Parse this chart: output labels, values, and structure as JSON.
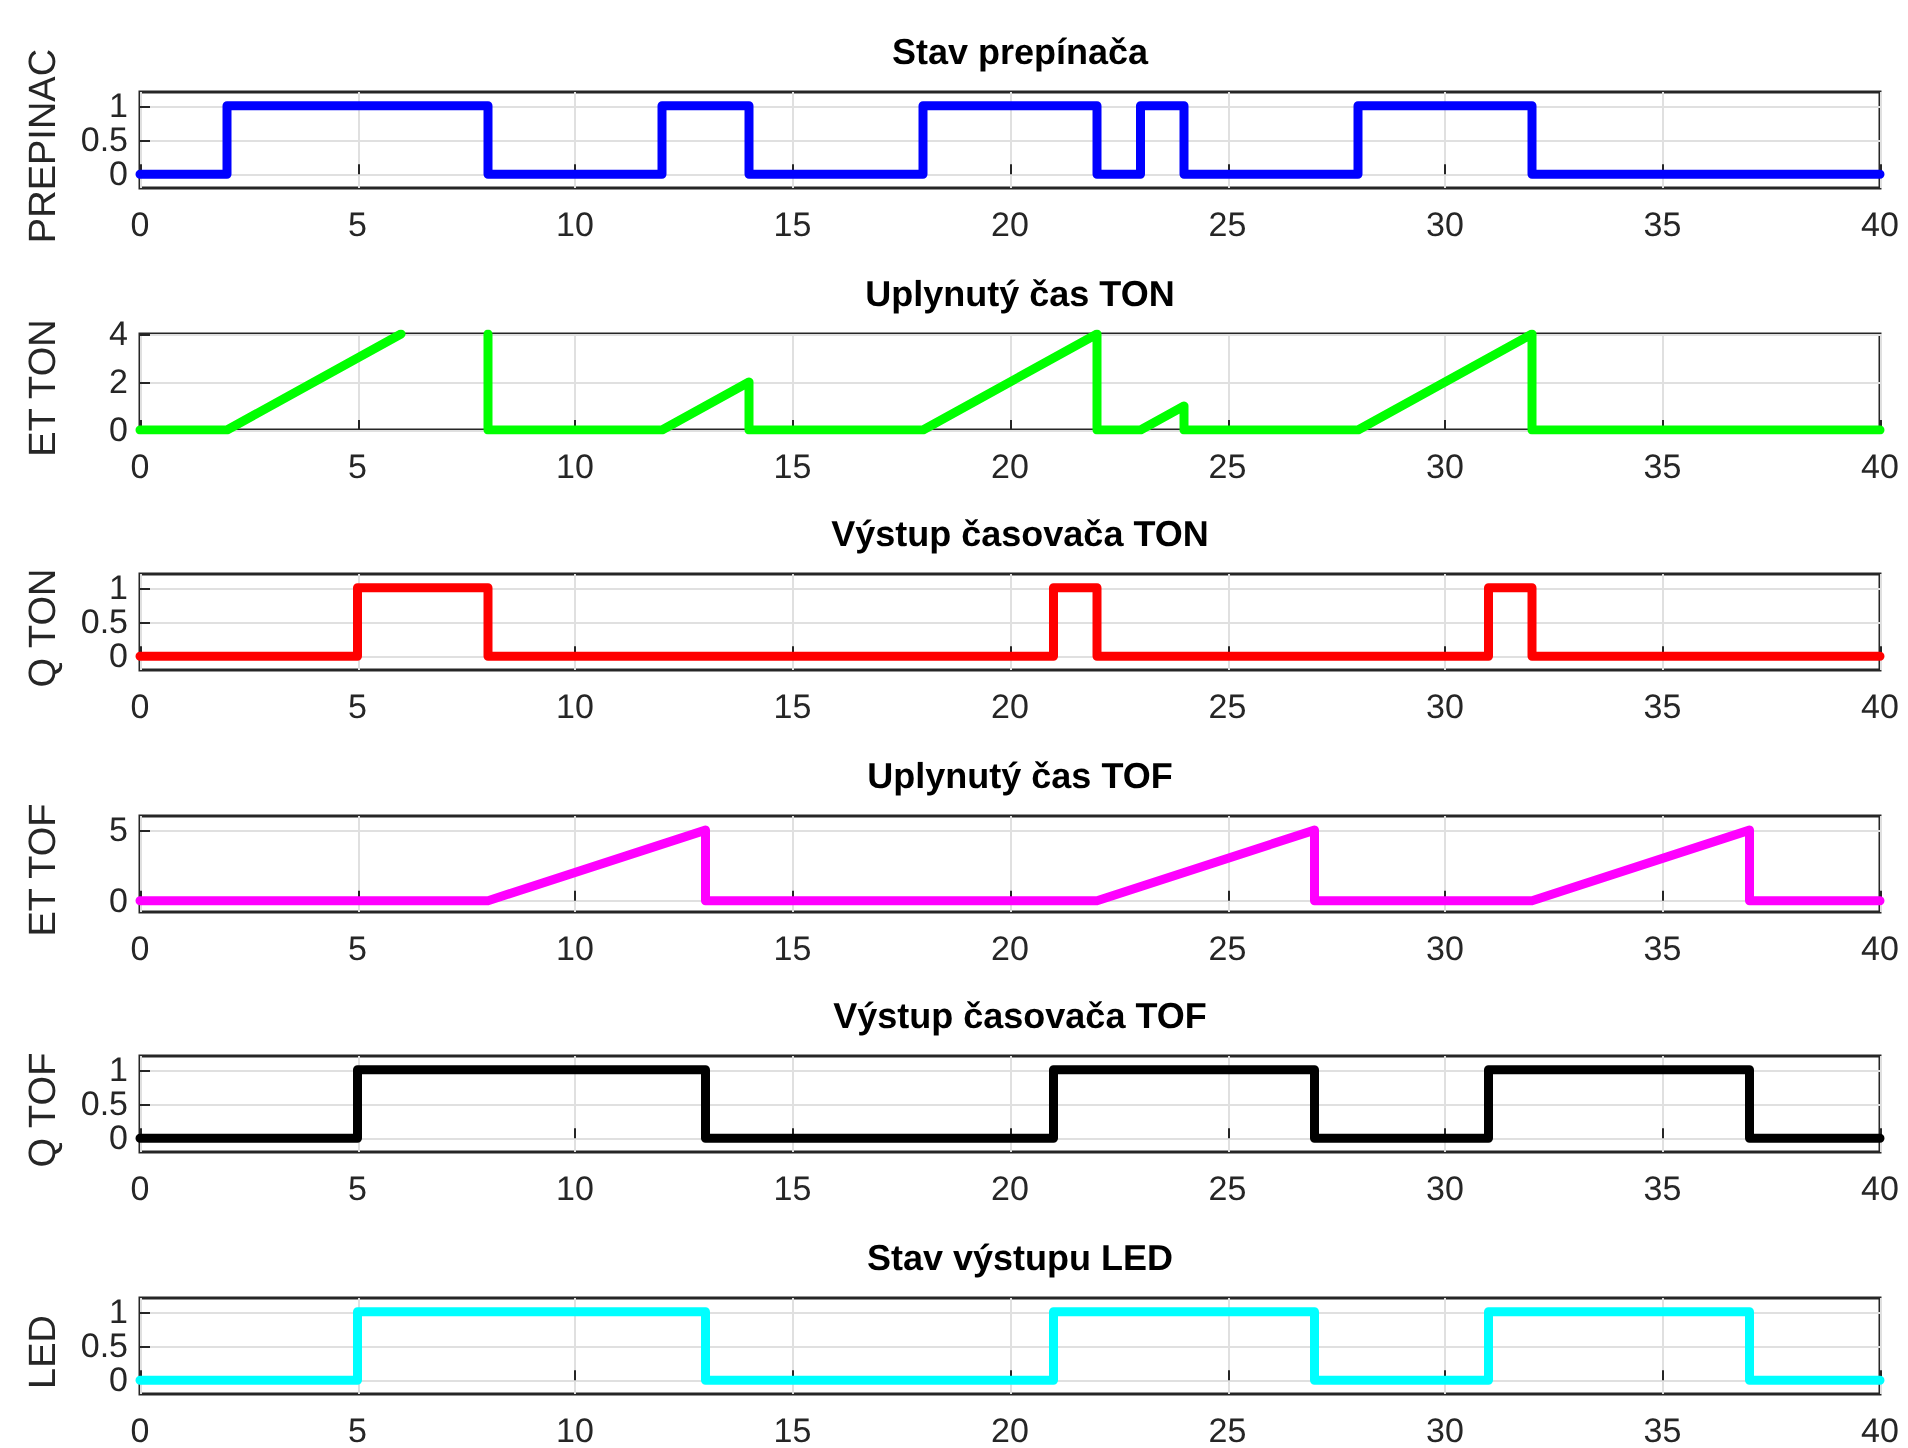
{
  "chart_data": [
    {
      "type": "line",
      "title": "Stav prepínača",
      "ylabel": "PREPINAC",
      "xlim": [
        0,
        40
      ],
      "xticks": [
        0,
        5,
        10,
        15,
        20,
        25,
        30,
        35,
        40
      ],
      "ylim": [
        -0.2,
        1.2
      ],
      "yticks": [
        0,
        0.5,
        1
      ],
      "grid": true,
      "marker": "none",
      "line_style": "solid",
      "series": [
        {
          "color": "#0000ff",
          "x": [
            0,
            2,
            2,
            8,
            8,
            12,
            12,
            14,
            14,
            18,
            18,
            22,
            22,
            23,
            23,
            24,
            24,
            28,
            28,
            32,
            32,
            40
          ],
          "values": [
            0,
            0,
            1,
            1,
            0,
            0,
            1,
            1,
            0,
            0,
            1,
            1,
            0,
            0,
            1,
            1,
            0,
            0,
            1,
            1,
            0,
            0
          ]
        }
      ]
    },
    {
      "type": "line",
      "title": "Uplynutý čas TON",
      "ylabel": "ET TON",
      "xlim": [
        0,
        40
      ],
      "xticks": [
        0,
        5,
        10,
        15,
        20,
        25,
        30,
        35,
        40
      ],
      "ylim": [
        0,
        4
      ],
      "yticks": [
        0,
        2,
        4
      ],
      "grid": true,
      "marker": "none",
      "line_style": "solid",
      "series": [
        {
          "color": "#00ff00",
          "x": [
            0,
            2,
            6,
            7,
            8,
            8,
            12,
            14,
            14,
            18,
            22,
            22,
            23,
            24,
            24,
            28,
            32,
            32,
            40
          ],
          "values": [
            0,
            0,
            4,
            null,
            4,
            0,
            0,
            2,
            0,
            0,
            4,
            0,
            0,
            1,
            0,
            0,
            4,
            0,
            0
          ]
        }
      ]
    },
    {
      "type": "line",
      "title": "Výstup časovača TON",
      "ylabel": "Q TON",
      "xlim": [
        0,
        40
      ],
      "xticks": [
        0,
        5,
        10,
        15,
        20,
        25,
        30,
        35,
        40
      ],
      "ylim": [
        -0.2,
        1.2
      ],
      "yticks": [
        0,
        0.5,
        1
      ],
      "grid": true,
      "marker": "none",
      "line_style": "solid",
      "series": [
        {
          "color": "#ff0000",
          "x": [
            0,
            5,
            5,
            8,
            8,
            21,
            21,
            22,
            22,
            31,
            31,
            32,
            32,
            40
          ],
          "values": [
            0,
            0,
            1,
            1,
            0,
            0,
            1,
            1,
            0,
            0,
            1,
            1,
            0,
            0
          ]
        }
      ]
    },
    {
      "type": "line",
      "title": "Uplynutý čas TOF",
      "ylabel": "ET TOF",
      "xlim": [
        0,
        40
      ],
      "xticks": [
        0,
        5,
        10,
        15,
        20,
        25,
        30,
        35,
        40
      ],
      "ylim": [
        -0.8,
        6
      ],
      "yticks": [
        0,
        5
      ],
      "grid": true,
      "marker": "none",
      "line_style": "solid",
      "series": [
        {
          "color": "#ff00ff",
          "x": [
            0,
            8,
            13,
            13,
            22,
            27,
            27,
            32,
            37,
            37,
            40
          ],
          "values": [
            0,
            0,
            5,
            0,
            0,
            5,
            0,
            0,
            5,
            0,
            0
          ]
        }
      ]
    },
    {
      "type": "line",
      "title": "Výstup časovača TOF",
      "ylabel": "Q TOF",
      "xlim": [
        0,
        40
      ],
      "xticks": [
        0,
        5,
        10,
        15,
        20,
        25,
        30,
        35,
        40
      ],
      "ylim": [
        -0.2,
        1.2
      ],
      "yticks": [
        0,
        0.5,
        1
      ],
      "grid": true,
      "marker": "none",
      "line_style": "solid",
      "series": [
        {
          "color": "#000000",
          "x": [
            0,
            5,
            5,
            13,
            13,
            21,
            21,
            27,
            27,
            31,
            31,
            37,
            37,
            40
          ],
          "values": [
            0,
            0,
            1,
            1,
            0,
            0,
            1,
            1,
            0,
            0,
            1,
            1,
            0,
            0
          ]
        }
      ]
    },
    {
      "type": "line",
      "title": "Stav výstupu LED",
      "ylabel": "LED",
      "xlim": [
        0,
        40
      ],
      "xticks": [
        0,
        5,
        10,
        15,
        20,
        25,
        30,
        35,
        40
      ],
      "ylim": [
        -0.2,
        1.2
      ],
      "yticks": [
        0,
        0.5,
        1
      ],
      "grid": true,
      "marker": "none",
      "line_style": "solid",
      "series": [
        {
          "color": "#00ffff",
          "x": [
            0,
            5,
            5,
            13,
            13,
            21,
            21,
            27,
            27,
            31,
            31,
            37,
            37,
            40
          ],
          "values": [
            0,
            0,
            1,
            1,
            0,
            0,
            1,
            1,
            0,
            0,
            1,
            1,
            0,
            0
          ]
        }
      ]
    }
  ]
}
